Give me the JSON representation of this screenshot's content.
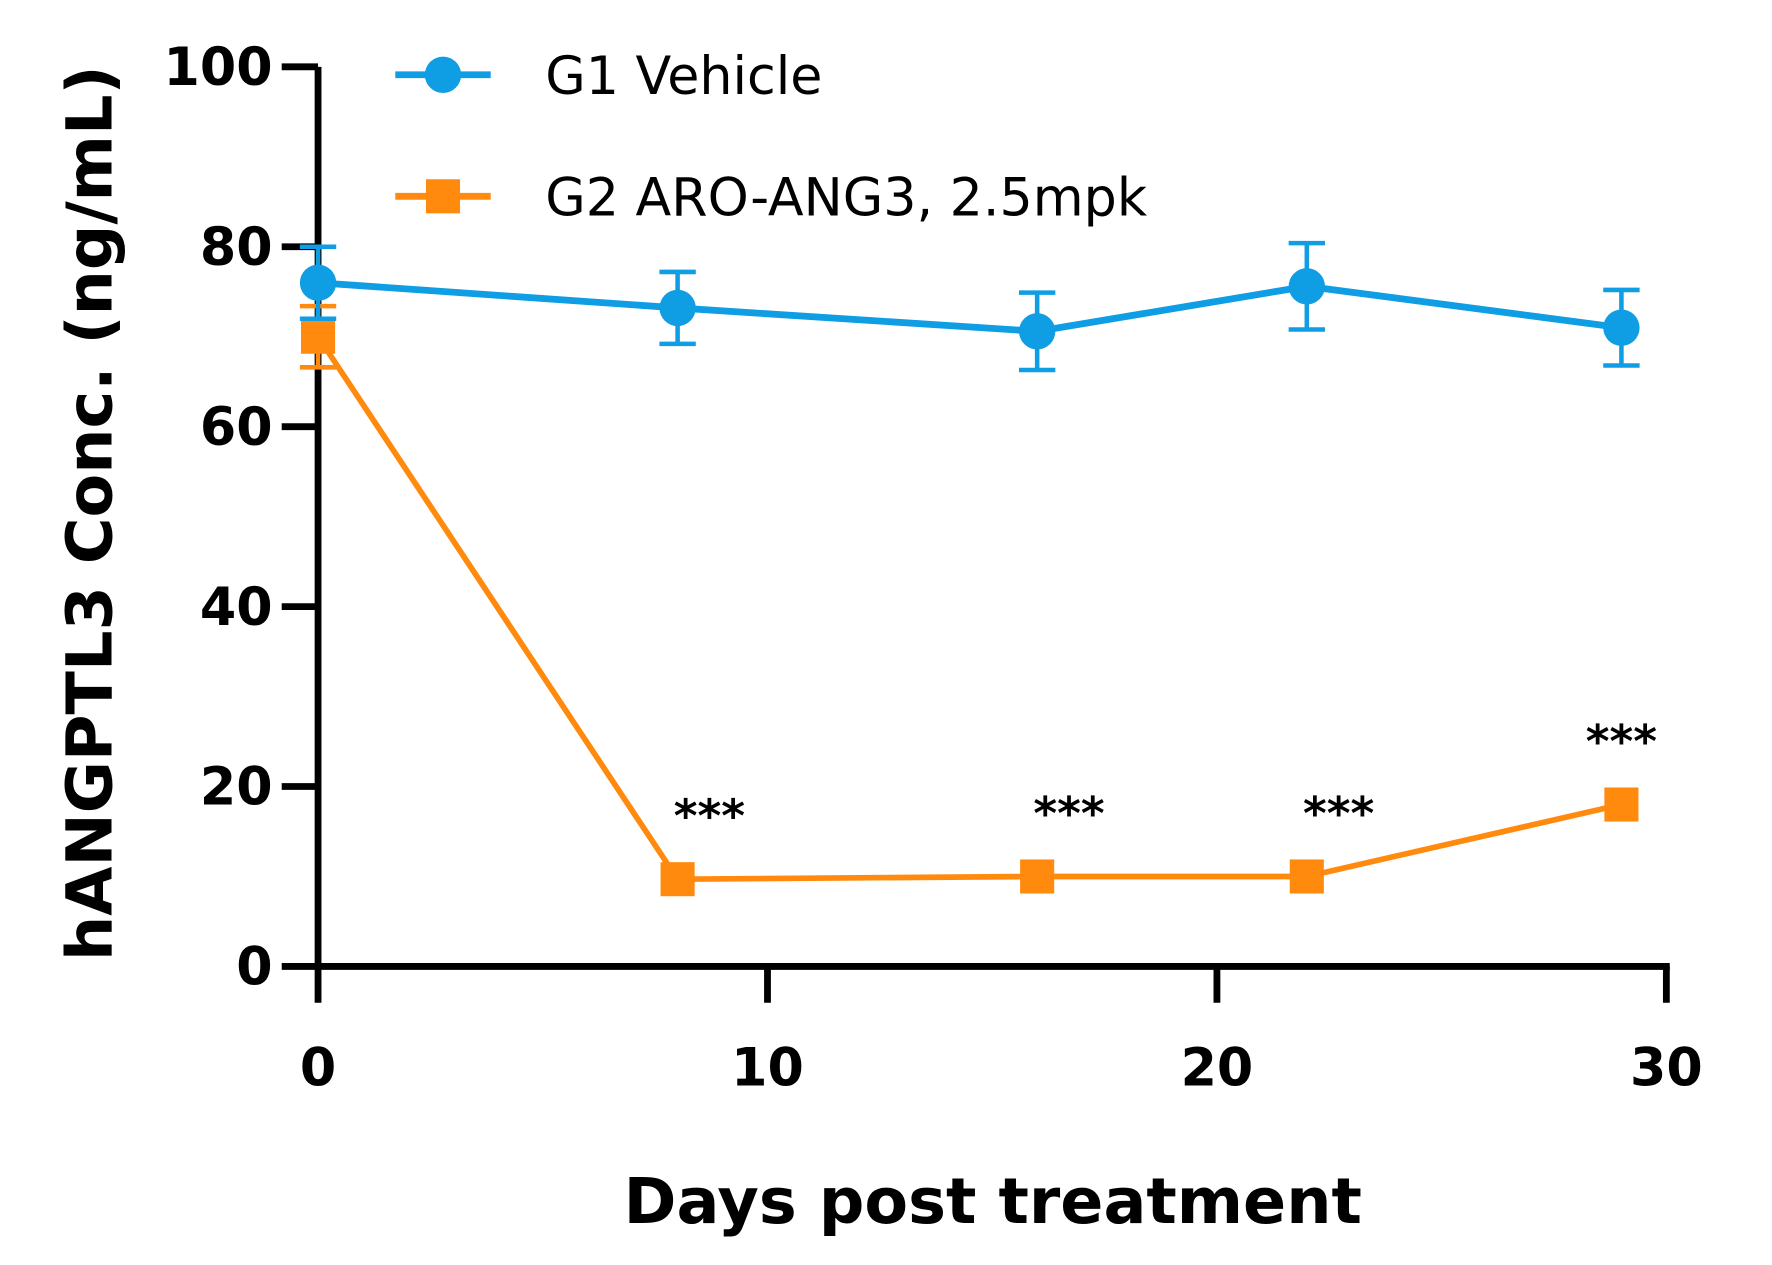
{
  "chart_data": {
    "type": "line",
    "title": "",
    "xlabel": "Days post treatment",
    "ylabel": "hANGPTL3 Conc. (ng/mL)",
    "xlim": [
      0,
      30
    ],
    "ylim": [
      0,
      100
    ],
    "xticks": [
      0,
      10,
      20,
      30
    ],
    "yticks": [
      0,
      20,
      40,
      60,
      80,
      100
    ],
    "grid": false,
    "legend_position": "top",
    "series": [
      {
        "name": "G1 Vehicle",
        "color": "#0f9de3",
        "marker": "circle",
        "x": [
          0,
          8,
          16,
          22,
          29
        ],
        "y": [
          76,
          73.2,
          70.6,
          75.6,
          71.0
        ],
        "error": [
          4,
          4,
          4.3,
          4.8,
          4.2
        ]
      },
      {
        "name": "G2 ARO-ANG3, 2.5mpk",
        "color": "#ff8a0d",
        "marker": "square",
        "x": [
          0,
          8,
          16,
          22,
          29
        ],
        "y": [
          70,
          9.7,
          10,
          10,
          18
        ],
        "error": [
          3.4,
          0,
          0,
          0,
          0
        ]
      }
    ],
    "annotations": [
      {
        "x": 8,
        "text": "***"
      },
      {
        "x": 16,
        "text": "***"
      },
      {
        "x": 22,
        "text": "***"
      },
      {
        "x": 29,
        "text": "***"
      }
    ]
  }
}
